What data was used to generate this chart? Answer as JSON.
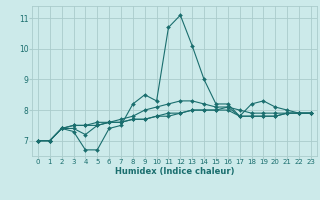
{
  "title": "",
  "xlabel": "Humidex (Indice chaleur)",
  "ylabel": "",
  "background_color": "#cceaea",
  "grid_color": "#aacccc",
  "line_color": "#1a6e6e",
  "xlim": [
    -0.5,
    23.5
  ],
  "ylim": [
    6.5,
    11.4
  ],
  "xticks": [
    0,
    1,
    2,
    3,
    4,
    5,
    6,
    7,
    8,
    9,
    10,
    11,
    12,
    13,
    14,
    15,
    16,
    17,
    18,
    19,
    20,
    21,
    22,
    23
  ],
  "yticks": [
    7,
    8,
    9,
    10,
    11
  ],
  "series": [
    [
      7.0,
      7.0,
      7.4,
      7.3,
      6.7,
      6.7,
      7.4,
      7.5,
      8.2,
      8.5,
      8.3,
      10.7,
      11.1,
      10.1,
      9.0,
      8.2,
      8.2,
      7.8,
      8.2,
      8.3,
      8.1,
      8.0,
      7.9,
      7.9
    ],
    [
      7.0,
      7.0,
      7.4,
      7.4,
      7.2,
      7.5,
      7.6,
      7.7,
      7.8,
      8.0,
      8.1,
      8.2,
      8.3,
      8.3,
      8.2,
      8.1,
      8.1,
      8.0,
      7.9,
      7.9,
      7.9,
      7.9,
      7.9,
      7.9
    ],
    [
      7.0,
      7.0,
      7.4,
      7.5,
      7.5,
      7.5,
      7.6,
      7.6,
      7.7,
      7.7,
      7.8,
      7.8,
      7.9,
      8.0,
      8.0,
      8.0,
      8.1,
      7.8,
      7.8,
      7.8,
      7.8,
      7.9,
      7.9,
      7.9
    ],
    [
      7.0,
      7.0,
      7.4,
      7.5,
      7.5,
      7.6,
      7.6,
      7.6,
      7.7,
      7.7,
      7.8,
      7.9,
      7.9,
      8.0,
      8.0,
      8.0,
      8.0,
      7.8,
      7.8,
      7.8,
      7.8,
      7.9,
      7.9,
      7.9
    ]
  ],
  "tick_fontsize": 5.0,
  "xlabel_fontsize": 6.0
}
